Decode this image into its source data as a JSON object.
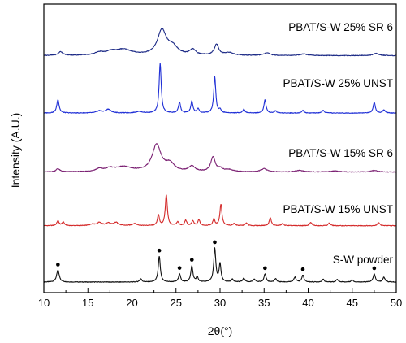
{
  "chart_data": {
    "type": "line",
    "xlabel": "2θ(°)",
    "ylabel": "Intensity (A.U.)",
    "xlim": [
      10,
      50
    ],
    "x_ticks": [
      10,
      15,
      20,
      25,
      30,
      35,
      40,
      45,
      50
    ],
    "x_tick_labels": [
      "10",
      "15",
      "20",
      "25",
      "30",
      "35",
      "40",
      "45",
      "50"
    ],
    "y_ticks_shown": false,
    "grid": false,
    "legend": "inline labels beside each trace",
    "series": [
      {
        "name": "S-W powder",
        "color": "#111111",
        "baseline": 0,
        "peaks": [
          {
            "x": 11.6,
            "h": 0.22,
            "w": 0.18
          },
          {
            "x": 21.0,
            "h": 0.06,
            "w": 0.15
          },
          {
            "x": 23.1,
            "h": 0.48,
            "w": 0.14
          },
          {
            "x": 25.4,
            "h": 0.15,
            "w": 0.14
          },
          {
            "x": 26.8,
            "h": 0.3,
            "w": 0.14
          },
          {
            "x": 27.4,
            "h": 0.1,
            "w": 0.12
          },
          {
            "x": 29.4,
            "h": 0.62,
            "w": 0.14
          },
          {
            "x": 30.0,
            "h": 0.33,
            "w": 0.13
          },
          {
            "x": 31.4,
            "h": 0.05,
            "w": 0.15
          },
          {
            "x": 32.7,
            "h": 0.07,
            "w": 0.15
          },
          {
            "x": 33.9,
            "h": 0.05,
            "w": 0.15
          },
          {
            "x": 35.1,
            "h": 0.15,
            "w": 0.14
          },
          {
            "x": 36.3,
            "h": 0.06,
            "w": 0.15
          },
          {
            "x": 38.5,
            "h": 0.09,
            "w": 0.15
          },
          {
            "x": 39.4,
            "h": 0.13,
            "w": 0.14
          },
          {
            "x": 41.7,
            "h": 0.05,
            "w": 0.15
          },
          {
            "x": 43.3,
            "h": 0.05,
            "w": 0.15
          },
          {
            "x": 45.0,
            "h": 0.04,
            "w": 0.15
          },
          {
            "x": 47.5,
            "h": 0.15,
            "w": 0.15
          },
          {
            "x": 48.6,
            "h": 0.09,
            "w": 0.15
          }
        ],
        "markers_x": [
          11.6,
          23.1,
          25.4,
          26.8,
          29.4,
          35.1,
          39.4,
          47.5
        ]
      },
      {
        "name": "PBAT/S-W 15% UNST",
        "color": "#d42a2a",
        "baseline": 1.05,
        "peaks": [
          {
            "x": 11.6,
            "h": 0.09,
            "w": 0.15
          },
          {
            "x": 12.2,
            "h": 0.07,
            "w": 0.15
          },
          {
            "x": 15.5,
            "h": 0.03,
            "w": 0.3
          },
          {
            "x": 16.3,
            "h": 0.06,
            "w": 0.3
          },
          {
            "x": 17.3,
            "h": 0.05,
            "w": 0.3
          },
          {
            "x": 18.2,
            "h": 0.06,
            "w": 0.3
          },
          {
            "x": 20.3,
            "h": 0.04,
            "w": 0.3
          },
          {
            "x": 23.0,
            "h": 0.2,
            "w": 0.13
          },
          {
            "x": 23.9,
            "h": 0.58,
            "w": 0.14
          },
          {
            "x": 25.2,
            "h": 0.07,
            "w": 0.14
          },
          {
            "x": 26.1,
            "h": 0.1,
            "w": 0.14
          },
          {
            "x": 26.9,
            "h": 0.09,
            "w": 0.14
          },
          {
            "x": 27.6,
            "h": 0.11,
            "w": 0.14
          },
          {
            "x": 29.3,
            "h": 0.12,
            "w": 0.14
          },
          {
            "x": 30.1,
            "h": 0.4,
            "w": 0.14
          },
          {
            "x": 31.6,
            "h": 0.04,
            "w": 0.15
          },
          {
            "x": 33.0,
            "h": 0.05,
            "w": 0.15
          },
          {
            "x": 35.7,
            "h": 0.15,
            "w": 0.14
          },
          {
            "x": 37.1,
            "h": 0.04,
            "w": 0.15
          },
          {
            "x": 40.3,
            "h": 0.06,
            "w": 0.15
          },
          {
            "x": 42.4,
            "h": 0.05,
            "w": 0.15
          },
          {
            "x": 48.0,
            "h": 0.06,
            "w": 0.15
          }
        ]
      },
      {
        "name": "PBAT/S-W 15% SR 6",
        "color": "#7a1f72",
        "baseline": 2.05,
        "peaks": [
          {
            "x": 11.6,
            "h": 0.06,
            "w": 0.25
          },
          {
            "x": 16.3,
            "h": 0.05,
            "w": 0.5
          },
          {
            "x": 17.5,
            "h": 0.05,
            "w": 0.5
          },
          {
            "x": 19.0,
            "h": 0.09,
            "w": 1.2
          },
          {
            "x": 22.8,
            "h": 0.5,
            "w": 0.6
          },
          {
            "x": 24.3,
            "h": 0.14,
            "w": 0.6
          },
          {
            "x": 26.8,
            "h": 0.1,
            "w": 0.4
          },
          {
            "x": 29.2,
            "h": 0.27,
            "w": 0.3
          },
          {
            "x": 30.0,
            "h": 0.05,
            "w": 0.3
          },
          {
            "x": 31.0,
            "h": 0.04,
            "w": 0.6
          },
          {
            "x": 35.0,
            "h": 0.06,
            "w": 0.4
          },
          {
            "x": 39.0,
            "h": 0.03,
            "w": 0.5
          },
          {
            "x": 43.0,
            "h": 0.02,
            "w": 0.6
          },
          {
            "x": 47.5,
            "h": 0.03,
            "w": 0.4
          }
        ]
      },
      {
        "name": "PBAT/S-W 25% UNST",
        "color": "#1f2fd6",
        "baseline": 3.15,
        "peaks": [
          {
            "x": 11.6,
            "h": 0.25,
            "w": 0.16
          },
          {
            "x": 16.3,
            "h": 0.04,
            "w": 0.35
          },
          {
            "x": 17.3,
            "h": 0.07,
            "w": 0.35
          },
          {
            "x": 20.8,
            "h": 0.03,
            "w": 0.4
          },
          {
            "x": 23.2,
            "h": 0.93,
            "w": 0.14
          },
          {
            "x": 25.4,
            "h": 0.2,
            "w": 0.14
          },
          {
            "x": 26.8,
            "h": 0.22,
            "w": 0.14
          },
          {
            "x": 27.5,
            "h": 0.08,
            "w": 0.14
          },
          {
            "x": 29.4,
            "h": 0.67,
            "w": 0.14
          },
          {
            "x": 30.0,
            "h": 0.06,
            "w": 0.14
          },
          {
            "x": 32.7,
            "h": 0.07,
            "w": 0.15
          },
          {
            "x": 35.1,
            "h": 0.25,
            "w": 0.14
          },
          {
            "x": 36.3,
            "h": 0.04,
            "w": 0.15
          },
          {
            "x": 39.4,
            "h": 0.05,
            "w": 0.15
          },
          {
            "x": 41.7,
            "h": 0.05,
            "w": 0.15
          },
          {
            "x": 47.5,
            "h": 0.2,
            "w": 0.15
          },
          {
            "x": 48.6,
            "h": 0.06,
            "w": 0.15
          }
        ]
      },
      {
        "name": "PBAT/S-W 25% SR 6",
        "color": "#1c2a86",
        "baseline": 4.22,
        "peaks": [
          {
            "x": 11.9,
            "h": 0.07,
            "w": 0.3
          },
          {
            "x": 16.3,
            "h": 0.05,
            "w": 0.6
          },
          {
            "x": 17.6,
            "h": 0.05,
            "w": 0.6
          },
          {
            "x": 19.0,
            "h": 0.11,
            "w": 1.2
          },
          {
            "x": 23.4,
            "h": 0.46,
            "w": 0.6
          },
          {
            "x": 24.6,
            "h": 0.15,
            "w": 0.7
          },
          {
            "x": 26.9,
            "h": 0.1,
            "w": 0.4
          },
          {
            "x": 29.6,
            "h": 0.2,
            "w": 0.3
          },
          {
            "x": 31.0,
            "h": 0.05,
            "w": 0.6
          },
          {
            "x": 35.3,
            "h": 0.05,
            "w": 0.4
          },
          {
            "x": 39.5,
            "h": 0.03,
            "w": 0.5
          },
          {
            "x": 47.7,
            "h": 0.04,
            "w": 0.4
          }
        ]
      }
    ]
  }
}
